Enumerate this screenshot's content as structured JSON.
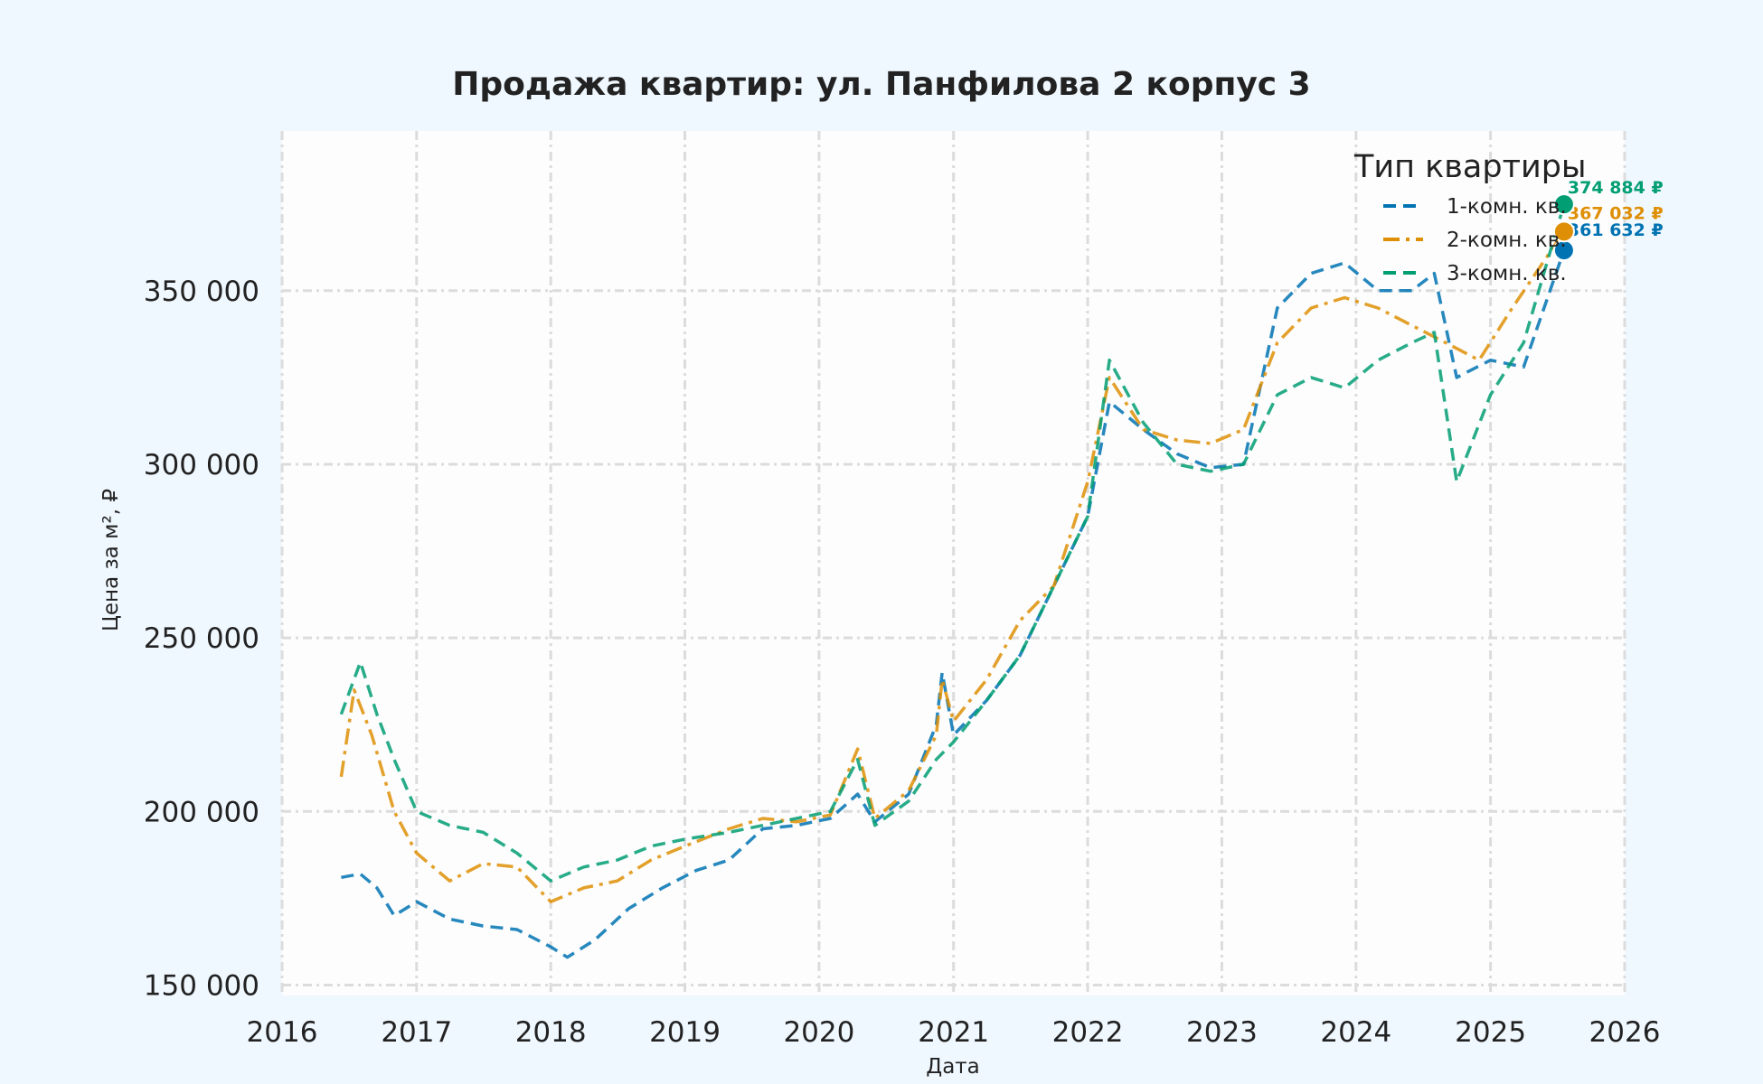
{
  "chart_data": {
    "type": "line",
    "title": "Продажа квартир: ул. Панфилова 2 корпус 3",
    "xlabel": "Дата",
    "ylabel": "Цена за м², ₽",
    "xlim": [
      "2016-01-01",
      "2026-01-01"
    ],
    "ylim": [
      147000,
      396000
    ],
    "x_ticks": [
      "2016",
      "2017",
      "2018",
      "2019",
      "2020",
      "2021",
      "2022",
      "2023",
      "2024",
      "2025",
      "2026"
    ],
    "y_ticks": [
      150000,
      200000,
      250000,
      300000,
      350000
    ],
    "y_tick_labels": [
      "150 000",
      "200 000",
      "250 000",
      "300 000",
      "350 000"
    ],
    "grid": true,
    "legend": {
      "title": "Тип квартиры",
      "placement": "top-right"
    },
    "series": [
      {
        "name": "1-комн. кв.",
        "color": "#0173b2",
        "dash": "dashed",
        "end_label": "361 632 ₽",
        "points": [
          [
            "2016-06-10",
            181000
          ],
          [
            "2016-08-01",
            182000
          ],
          [
            "2016-09-15",
            178000
          ],
          [
            "2016-11-01",
            170000
          ],
          [
            "2017-01-01",
            174000
          ],
          [
            "2017-04-01",
            169000
          ],
          [
            "2017-07-01",
            167000
          ],
          [
            "2017-10-01",
            166000
          ],
          [
            "2018-01-01",
            161000
          ],
          [
            "2018-02-15",
            158000
          ],
          [
            "2018-05-01",
            163000
          ],
          [
            "2018-08-01",
            172000
          ],
          [
            "2018-11-01",
            178000
          ],
          [
            "2019-02-01",
            183000
          ],
          [
            "2019-05-01",
            186000
          ],
          [
            "2019-08-01",
            195000
          ],
          [
            "2019-11-01",
            196000
          ],
          [
            "2020-02-01",
            198000
          ],
          [
            "2020-04-15",
            205000
          ],
          [
            "2020-06-01",
            197000
          ],
          [
            "2020-09-01",
            205000
          ],
          [
            "2020-11-15",
            225000
          ],
          [
            "2020-12-01",
            240000
          ],
          [
            "2021-01-01",
            222000
          ],
          [
            "2021-04-01",
            232000
          ],
          [
            "2021-07-01",
            245000
          ],
          [
            "2021-10-01",
            265000
          ],
          [
            "2022-01-01",
            285000
          ],
          [
            "2022-03-01",
            318000
          ],
          [
            "2022-06-01",
            310000
          ],
          [
            "2022-09-01",
            303000
          ],
          [
            "2022-12-01",
            299000
          ],
          [
            "2023-03-01",
            300000
          ],
          [
            "2023-06-01",
            345000
          ],
          [
            "2023-09-01",
            355000
          ],
          [
            "2023-12-01",
            358000
          ],
          [
            "2024-03-01",
            350000
          ],
          [
            "2024-06-01",
            350000
          ],
          [
            "2024-08-01",
            355000
          ],
          [
            "2024-10-01",
            325000
          ],
          [
            "2025-01-01",
            330000
          ],
          [
            "2025-04-01",
            328000
          ],
          [
            "2025-07-20",
            361632
          ]
        ]
      },
      {
        "name": "2-комн. кв.",
        "color": "#de8f05",
        "dash": "dashdot",
        "end_label": "367 032 ₽",
        "points": [
          [
            "2016-06-10",
            210000
          ],
          [
            "2016-07-15",
            235000
          ],
          [
            "2016-09-01",
            222000
          ],
          [
            "2016-11-01",
            200000
          ],
          [
            "2017-01-01",
            188000
          ],
          [
            "2017-04-01",
            180000
          ],
          [
            "2017-07-01",
            185000
          ],
          [
            "2017-10-01",
            184000
          ],
          [
            "2018-01-01",
            174000
          ],
          [
            "2018-04-01",
            178000
          ],
          [
            "2018-07-01",
            180000
          ],
          [
            "2018-10-01",
            186000
          ],
          [
            "2019-01-01",
            190000
          ],
          [
            "2019-05-01",
            195000
          ],
          [
            "2019-08-01",
            198000
          ],
          [
            "2019-11-01",
            197000
          ],
          [
            "2020-02-01",
            199000
          ],
          [
            "2020-04-15",
            218000
          ],
          [
            "2020-06-01",
            198000
          ],
          [
            "2020-09-01",
            206000
          ],
          [
            "2020-11-15",
            222000
          ],
          [
            "2020-12-01",
            238000
          ],
          [
            "2021-01-01",
            226000
          ],
          [
            "2021-04-01",
            238000
          ],
          [
            "2021-07-01",
            255000
          ],
          [
            "2021-10-01",
            265000
          ],
          [
            "2022-01-01",
            295000
          ],
          [
            "2022-03-01",
            325000
          ],
          [
            "2022-06-01",
            310000
          ],
          [
            "2022-09-01",
            307000
          ],
          [
            "2022-12-01",
            306000
          ],
          [
            "2023-03-01",
            310000
          ],
          [
            "2023-06-01",
            335000
          ],
          [
            "2023-09-01",
            345000
          ],
          [
            "2023-12-01",
            348000
          ],
          [
            "2024-03-01",
            345000
          ],
          [
            "2024-06-01",
            340000
          ],
          [
            "2024-09-01",
            335000
          ],
          [
            "2024-12-01",
            330000
          ],
          [
            "2025-03-01",
            345000
          ],
          [
            "2025-07-20",
            367032
          ]
        ]
      },
      {
        "name": "3-комн. кв.",
        "color": "#029e73",
        "dash": "dashed",
        "end_label": "374 884 ₽",
        "points": [
          [
            "2016-06-10",
            228000
          ],
          [
            "2016-08-01",
            243000
          ],
          [
            "2016-09-15",
            228000
          ],
          [
            "2016-11-01",
            215000
          ],
          [
            "2017-01-01",
            200000
          ],
          [
            "2017-04-01",
            196000
          ],
          [
            "2017-07-01",
            194000
          ],
          [
            "2017-10-01",
            188000
          ],
          [
            "2018-01-01",
            180000
          ],
          [
            "2018-04-01",
            184000
          ],
          [
            "2018-07-01",
            186000
          ],
          [
            "2018-10-01",
            190000
          ],
          [
            "2019-01-01",
            192000
          ],
          [
            "2019-05-01",
            194000
          ],
          [
            "2019-08-01",
            196000
          ],
          [
            "2019-11-01",
            198000
          ],
          [
            "2020-02-01",
            200000
          ],
          [
            "2020-04-15",
            215000
          ],
          [
            "2020-06-01",
            196000
          ],
          [
            "2020-09-01",
            203000
          ],
          [
            "2020-11-15",
            215000
          ],
          [
            "2021-01-01",
            220000
          ],
          [
            "2021-04-01",
            232000
          ],
          [
            "2021-07-01",
            245000
          ],
          [
            "2021-10-01",
            265000
          ],
          [
            "2022-01-01",
            285000
          ],
          [
            "2022-03-01",
            330000
          ],
          [
            "2022-06-01",
            312000
          ],
          [
            "2022-09-01",
            300000
          ],
          [
            "2022-12-01",
            298000
          ],
          [
            "2023-03-01",
            300000
          ],
          [
            "2023-06-01",
            320000
          ],
          [
            "2023-09-01",
            325000
          ],
          [
            "2023-12-01",
            322000
          ],
          [
            "2024-03-01",
            330000
          ],
          [
            "2024-06-01",
            335000
          ],
          [
            "2024-08-01",
            338000
          ],
          [
            "2024-10-01",
            295000
          ],
          [
            "2025-01-01",
            320000
          ],
          [
            "2025-04-01",
            335000
          ],
          [
            "2025-07-20",
            374884
          ]
        ]
      }
    ]
  }
}
